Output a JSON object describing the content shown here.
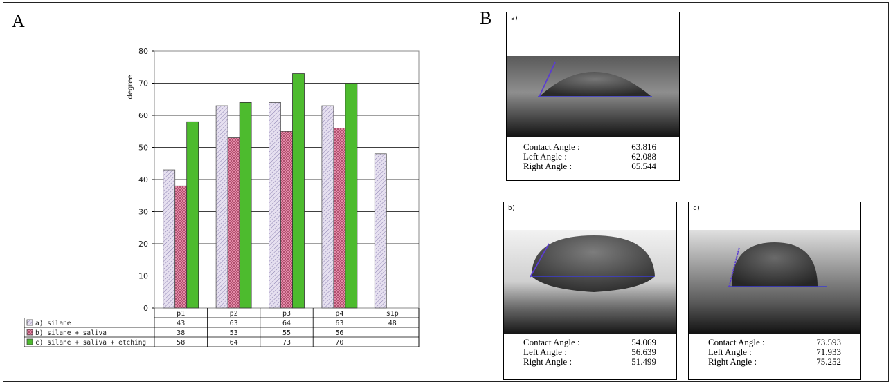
{
  "panels": {
    "left_label": "A",
    "right_label": "B"
  },
  "chart_data": {
    "type": "bar",
    "ylabel": "degree",
    "ylim": [
      0,
      80
    ],
    "yticks": [
      0,
      10,
      20,
      30,
      40,
      50,
      60,
      70,
      80
    ],
    "categories": [
      "p1",
      "p2",
      "p3",
      "p4",
      "s1p"
    ],
    "grid": true,
    "series": [
      {
        "name": "a) silane",
        "color": "#e6e0f0",
        "pattern": "diagonal-hatch",
        "values": [
          43,
          63,
          64,
          63,
          48
        ]
      },
      {
        "name": "b) silane + saliva",
        "color": "#e38aa8",
        "pattern": "crosshatch",
        "values": [
          38,
          53,
          55,
          56,
          null
        ]
      },
      {
        "name": "c) silane + saliva + etching",
        "color": "#4dbb2e",
        "pattern": "solid",
        "values": [
          58,
          64,
          73,
          70,
          null
        ]
      }
    ],
    "table": {
      "rows": [
        [
          "43",
          "63",
          "64",
          "63",
          "48"
        ],
        [
          "38",
          "53",
          "55",
          "56",
          ""
        ],
        [
          "58",
          "64",
          "73",
          "70",
          ""
        ]
      ]
    }
  },
  "measurements": [
    {
      "tag": "a)",
      "labels": [
        "Contact Angle :",
        "Left Angle :",
        "Right Angle :"
      ],
      "values": [
        "63.816",
        "62.088",
        "65.544"
      ]
    },
    {
      "tag": "b)",
      "labels": [
        "Contact Angle :",
        "Left Angle :",
        "Right Angle :"
      ],
      "values": [
        "54.069",
        "56.639",
        "51.499"
      ]
    },
    {
      "tag": "c)",
      "labels": [
        "Contact Angle :",
        "Left Angle :",
        "Right Angle :"
      ],
      "values": [
        "73.593",
        "71.933",
        "75.252"
      ]
    }
  ]
}
